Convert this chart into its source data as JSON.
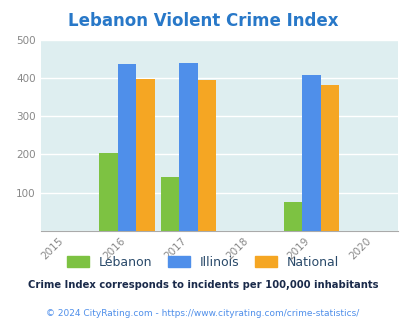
{
  "title": "Lebanon Violent Crime Index",
  "title_color": "#2878c8",
  "years": [
    2016,
    2017,
    2019
  ],
  "x_ticks": [
    2015,
    2016,
    2017,
    2018,
    2019,
    2020
  ],
  "lebanon": [
    205,
    140,
    75
  ],
  "illinois": [
    437,
    438,
    408
  ],
  "national": [
    398,
    394,
    381
  ],
  "lebanon_color": "#7dc242",
  "illinois_color": "#4f8fea",
  "national_color": "#f5a623",
  "bg_color": "#deeef0",
  "ylim": [
    0,
    500
  ],
  "yticks": [
    0,
    100,
    200,
    300,
    400,
    500
  ],
  "bar_width": 0.3,
  "legend_labels": [
    "Lebanon",
    "Illinois",
    "National"
  ],
  "legend_text_color": "#2a4a6a",
  "footnote1": "Crime Index corresponds to incidents per 100,000 inhabitants",
  "footnote2": "© 2024 CityRating.com - https://www.cityrating.com/crime-statistics/",
  "footnote1_color": "#1a2a4a",
  "footnote2_color": "#4f8fea"
}
